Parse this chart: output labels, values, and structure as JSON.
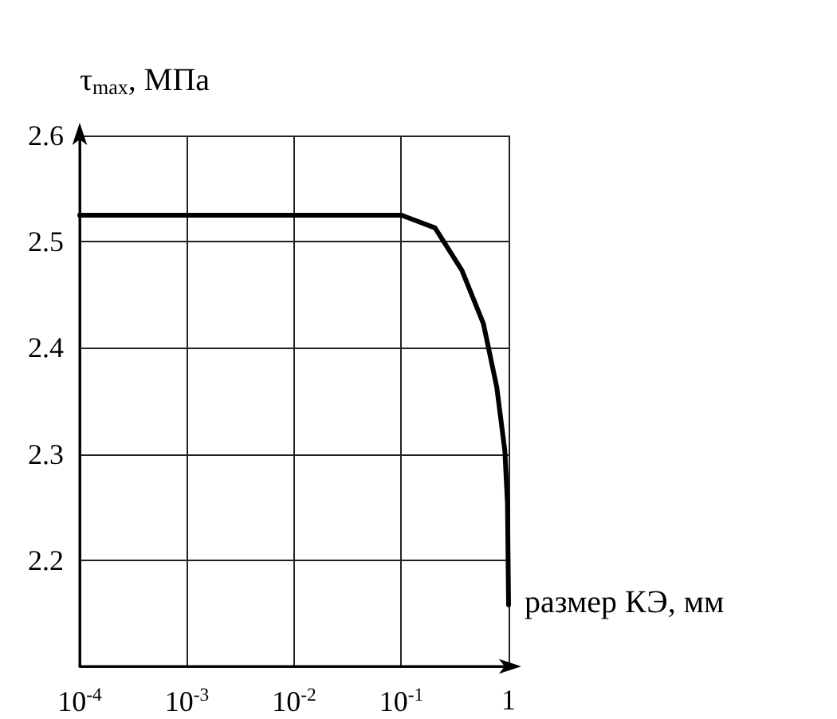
{
  "chart_data": {
    "type": "line",
    "xlabel": "размер КЭ, мм",
    "ylabel": "τ$_{max}$, МПа",
    "log": "x",
    "grid": true,
    "marker": "none",
    "line_style": "solid",
    "xlim": [
      0.0001,
      1
    ],
    "ylim": [
      2.1,
      2.6
    ],
    "xticks": [
      {
        "value": 0.0001,
        "label": "10$^{-4}$"
      },
      {
        "value": 0.001,
        "label": "10$^{-3}$"
      },
      {
        "value": 0.01,
        "label": "10$^{-2}$"
      },
      {
        "value": 0.1,
        "label": "10$^{-1}$"
      },
      1
    ],
    "yticks": [
      {
        "value": 2.1,
        "label": null
      },
      2.2,
      2.3,
      2.4,
      2.5,
      2.6
    ],
    "series": [
      {
        "color": "#000000",
        "x": [
          0.0001,
          0.001,
          0.01,
          0.1,
          0.206,
          0.367,
          0.582,
          0.776,
          0.923,
          0.977,
          1
        ],
        "values": [
          2.525,
          2.525,
          2.525,
          2.525,
          2.513,
          2.473,
          2.423,
          2.363,
          2.303,
          2.253,
          2.158
        ]
      }
    ]
  }
}
